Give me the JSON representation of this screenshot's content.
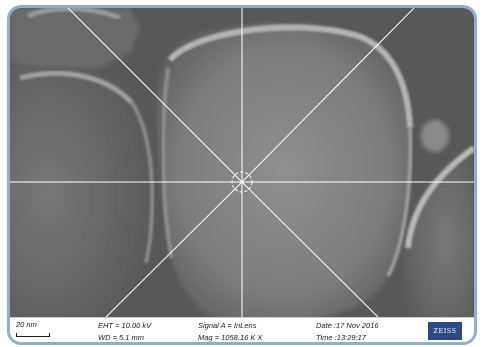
{
  "micrograph": {
    "crosshair": "crosshair-icon",
    "overlay_color": "#ffffff",
    "background_gray": "#5b5b5b"
  },
  "databar": {
    "scale": "20 nm",
    "eht": "EHT = 10.00 kV",
    "wd": "WD =  5.1 mm",
    "signal": "Signal A = InLens",
    "mag": "Mag = 1058.16 K X",
    "date": "Date :17 Nov 2016",
    "time": "Time :13:29:17",
    "logo": "ZEISS"
  },
  "colors": {
    "frame": "#8db0cf",
    "logo_bg": "#2c4a86"
  }
}
